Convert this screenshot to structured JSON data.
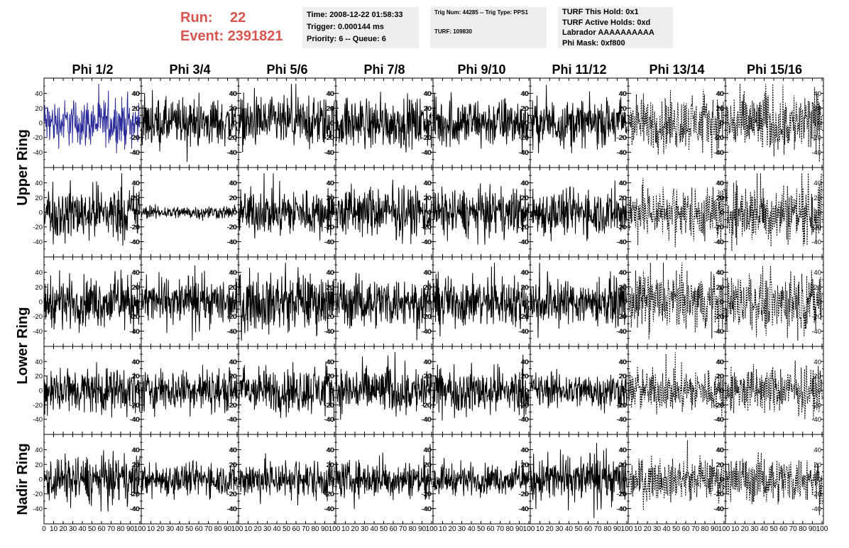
{
  "header": {
    "run_label": "Run:",
    "run_value": "22",
    "event_label": "Event:",
    "event_value": "2391821",
    "accent_color": "#d9534f"
  },
  "info_box_1": {
    "time": "Time: 2008-12-22 01:58:33",
    "trigger": "Trigger: 0.000144 ms",
    "priority": "Priority: 6 -- Queue: 6"
  },
  "info_box_2": {
    "trig": "Trig Num: 44285 -- Trig Type: PPS1",
    "turf": "TURF: 109830"
  },
  "info_box_3": {
    "this_hold": "TURF This Hold: 0x1",
    "active_holds": "TURF Active Holds: 0xd",
    "labrador": "Labrador AAAAAAAAAA",
    "phi_mask": "Phi Mask: 0xf800"
  },
  "chart_data": {
    "type": "line",
    "columns": [
      "Phi 1/2",
      "Phi 3/4",
      "Phi 5/6",
      "Phi 7/8",
      "Phi 9/10",
      "Phi 11/12",
      "Phi 13/14",
      "Phi 15/16"
    ],
    "row_labels": [
      "Upper Ring",
      "Lower Ring",
      "Nadir Ring"
    ],
    "rows": 5,
    "xlim": [
      0,
      100
    ],
    "ylim": [
      -55,
      55
    ],
    "y_ticks": [
      "-40",
      "-20",
      "0",
      "20",
      "40"
    ],
    "x_tick_strings": [
      "0 10 20 30 40 50 60 70 80 90 100",
      "10 20 30 40 50 60 70 80 90 100",
      "10 20 30 40 50 60 70 80 90 100",
      "10 20 30 40 50 60 70 80 90 100",
      "10 20 30 40 50 60 70 80 90 100",
      "10 20 30 40 50 60 70 80 90 100",
      "10 20 30 40 50 60 70 80 90 100",
      "10 20 30 40 50 60 70 80 90 100"
    ],
    "n_samples": 260,
    "colors": {
      "highlight": "#2b2b9a",
      "normal": "#000000"
    },
    "highlighted_panel": [
      0,
      0
    ],
    "dashed_columns": [
      6,
      7
    ],
    "amplitudes": [
      [
        14,
        14,
        15,
        15,
        15,
        14,
        16,
        19
      ],
      [
        16,
        4,
        14,
        15,
        14,
        14,
        16,
        18
      ],
      [
        15,
        14,
        17,
        15,
        15,
        14,
        17,
        17
      ],
      [
        14,
        13,
        14,
        15,
        14,
        11,
        13,
        14
      ],
      [
        14,
        10,
        12,
        11,
        9,
        14,
        12,
        14
      ]
    ]
  }
}
